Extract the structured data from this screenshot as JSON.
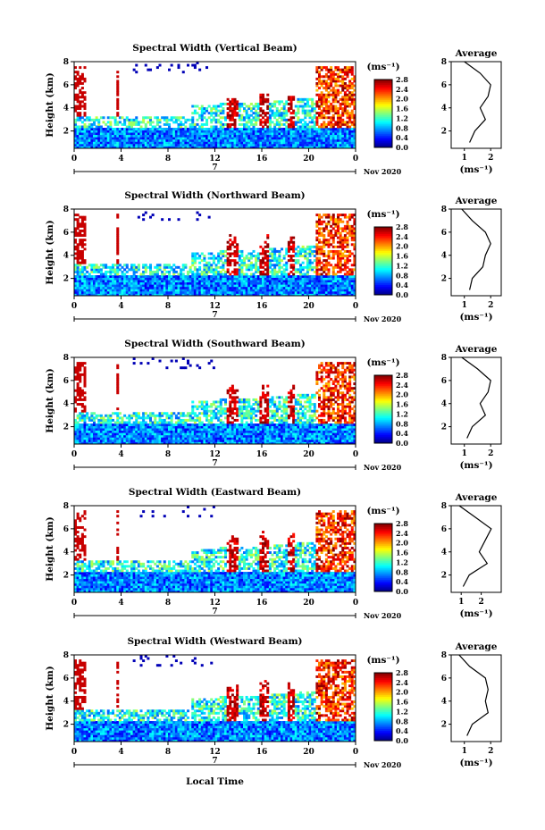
{
  "figure": {
    "xlabel": "Local Time",
    "x_ticks": [
      "0",
      "4",
      "8",
      "12",
      "16",
      "20",
      "0"
    ],
    "date_marker": "7",
    "date_label": "Nov 2020",
    "ylabel": "Height (km)",
    "y_ticks": [
      "2",
      "4",
      "6",
      "8"
    ],
    "colorbar_unit": "(ms⁻¹)",
    "colorbar_ticks": [
      "0.0",
      "0.4",
      "0.8",
      "1.2",
      "1.6",
      "2.0",
      "2.4",
      "2.8"
    ],
    "avg_title": "Average",
    "avg_xlabel": "(ms⁻¹)",
    "avg_y_ticks": [
      "2",
      "4",
      "6",
      "8"
    ],
    "avg_x_ticks": [
      "1",
      "2"
    ]
  },
  "chart_data": [
    {
      "type": "heatmap",
      "title": "Spectral Width (Vertical Beam)",
      "x_range_hours": [
        0,
        24
      ],
      "y_range_km": [
        0.5,
        8
      ],
      "value_range": [
        0,
        2.8
      ],
      "colormap": "jet",
      "average_profile": {
        "title": "Average",
        "x_range": [
          0.5,
          2.4
        ],
        "height_km": [
          1,
          2,
          3,
          4,
          5,
          6,
          7,
          8
        ],
        "values": [
          1.2,
          1.4,
          1.8,
          1.6,
          1.9,
          2.0,
          1.6,
          1.0
        ]
      }
    },
    {
      "type": "heatmap",
      "title": "Spectral Width (Northward Beam)",
      "x_range_hours": [
        0,
        24
      ],
      "y_range_km": [
        0.5,
        8
      ],
      "value_range": [
        0,
        2.8
      ],
      "colormap": "jet",
      "average_profile": {
        "title": "Average",
        "x_range": [
          0.5,
          2.4
        ],
        "height_km": [
          1,
          2,
          3,
          4,
          5,
          6,
          7,
          8
        ],
        "values": [
          1.2,
          1.3,
          1.7,
          1.8,
          2.0,
          1.8,
          1.3,
          0.9
        ]
      }
    },
    {
      "type": "heatmap",
      "title": "Spectral Width (Southward Beam)",
      "x_range_hours": [
        0,
        24
      ],
      "y_range_km": [
        0.5,
        8
      ],
      "value_range": [
        0,
        2.8
      ],
      "colormap": "jet",
      "average_profile": {
        "title": "Average",
        "x_range": [
          0.5,
          2.4
        ],
        "height_km": [
          1,
          2,
          3,
          4,
          5,
          6,
          7,
          8
        ],
        "values": [
          1.1,
          1.3,
          1.8,
          1.6,
          1.9,
          2.0,
          1.5,
          0.9
        ]
      }
    },
    {
      "type": "heatmap",
      "title": "Spectral Width (Eastward Beam)",
      "x_range_hours": [
        0,
        24
      ],
      "y_range_km": [
        0.5,
        8
      ],
      "value_range": [
        0,
        2.8
      ],
      "colormap": "jet",
      "average_profile": {
        "title": "Average",
        "x_range": [
          0.5,
          3.0
        ],
        "height_km": [
          1,
          2,
          3,
          4,
          5,
          6,
          7,
          8
        ],
        "values": [
          1.1,
          1.4,
          2.3,
          1.9,
          2.2,
          2.5,
          1.7,
          0.9
        ]
      }
    },
    {
      "type": "heatmap",
      "title": "Spectral Width (Westward Beam)",
      "x_range_hours": [
        0,
        24
      ],
      "y_range_km": [
        0.5,
        8
      ],
      "value_range": [
        0,
        2.8
      ],
      "colormap": "jet",
      "average_profile": {
        "title": "Average",
        "x_range": [
          0.5,
          2.4
        ],
        "height_km": [
          1,
          2,
          3,
          4,
          5,
          6,
          7,
          8
        ],
        "values": [
          1.1,
          1.3,
          1.9,
          1.8,
          1.9,
          1.8,
          1.2,
          0.8
        ]
      }
    }
  ]
}
